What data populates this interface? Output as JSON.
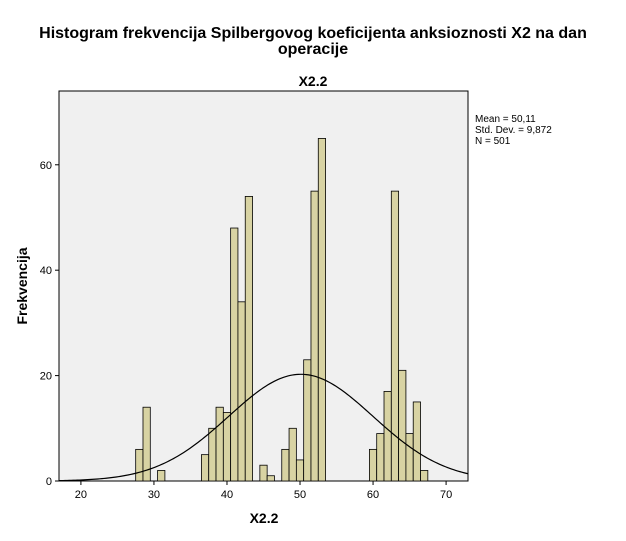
{
  "chart_data": {
    "type": "bar",
    "title": "Histogram frekvencija Spilbergovog koeficijenta anksioznosti X2 na dan operacije",
    "title_lines": [
      "Histogram frekvencija Spilbergovog koeficijenta anksioznosti X2 na dan",
      "operacije"
    ],
    "subtitle": "X2.2",
    "xlabel": "X2.2",
    "ylabel": "Frekvencija",
    "xlim": [
      17,
      73
    ],
    "ylim": [
      0,
      74
    ],
    "x_ticks": [
      20,
      30,
      40,
      50,
      60,
      70
    ],
    "y_ticks": [
      0,
      20,
      40,
      60
    ],
    "bin_width": 1,
    "bins": [
      {
        "x": 28,
        "value": 6
      },
      {
        "x": 29,
        "value": 14
      },
      {
        "x": 31,
        "value": 2
      },
      {
        "x": 37,
        "value": 5
      },
      {
        "x": 38,
        "value": 10
      },
      {
        "x": 39,
        "value": 14
      },
      {
        "x": 40,
        "value": 13
      },
      {
        "x": 41,
        "value": 48
      },
      {
        "x": 42,
        "value": 34
      },
      {
        "x": 43,
        "value": 54
      },
      {
        "x": 45,
        "value": 3
      },
      {
        "x": 46,
        "value": 1
      },
      {
        "x": 48,
        "value": 6
      },
      {
        "x": 49,
        "value": 10
      },
      {
        "x": 50,
        "value": 4
      },
      {
        "x": 51,
        "value": 23
      },
      {
        "x": 52,
        "value": 55
      },
      {
        "x": 53,
        "value": 65
      },
      {
        "x": 60,
        "value": 6
      },
      {
        "x": 61,
        "value": 9
      },
      {
        "x": 62,
        "value": 17
      },
      {
        "x": 63,
        "value": 55
      },
      {
        "x": 64,
        "value": 21
      },
      {
        "x": 65,
        "value": 9
      },
      {
        "x": 66,
        "value": 15
      },
      {
        "x": 67,
        "value": 2
      }
    ],
    "normal_curve": {
      "mean": 50.11,
      "std_dev": 9.872,
      "n": 501
    },
    "stats": {
      "mean": "Mean = 50,11",
      "std_dev": "Std. Dev. = 9,872",
      "n": "N = 501"
    },
    "grid": false,
    "colors": {
      "bar_fill": "#d8d3a3",
      "bar_stroke": "#000000",
      "plot_background": "#f0f0f0",
      "curve": "#000000"
    }
  }
}
